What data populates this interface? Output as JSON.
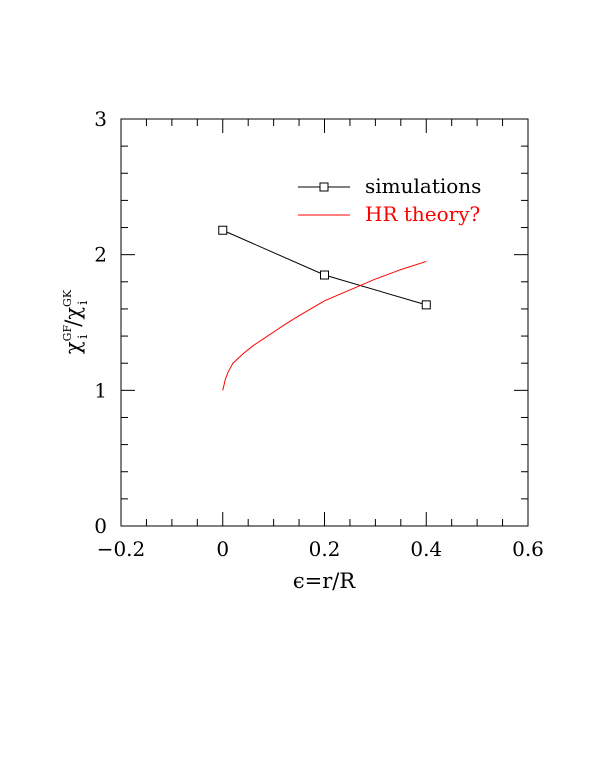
{
  "chart_data": {
    "type": "line",
    "title": "",
    "xlabel": "ϵ=r/R",
    "ylabel": "χi GF/χi GK",
    "ylabel_parts": {
      "chi": "χ",
      "sub": "i",
      "sup_num": "GF",
      "slash": "/",
      "sup_den": "GK"
    },
    "xlim": [
      -0.2,
      0.6
    ],
    "ylim": [
      0,
      3
    ],
    "x_ticks": [
      -0.2,
      0,
      0.2,
      0.4,
      0.6
    ],
    "x_tick_labels": [
      "−0.2",
      "0",
      "0.2",
      "0.4",
      "0.6"
    ],
    "y_ticks": [
      0,
      1,
      2,
      3
    ],
    "y_tick_labels": [
      "0",
      "1",
      "2",
      "3"
    ],
    "grid": false,
    "legend_position": "top-right",
    "series": [
      {
        "name": "simulations",
        "color": "#000000",
        "marker": "square",
        "x": [
          0,
          0.2,
          0.4
        ],
        "y": [
          2.18,
          1.85,
          1.63
        ]
      },
      {
        "name": "HR theory?",
        "color": "#ff0000",
        "marker": "none",
        "x": [
          0,
          0.005,
          0.01,
          0.02,
          0.04,
          0.06,
          0.08,
          0.1,
          0.12,
          0.15,
          0.2,
          0.25,
          0.3,
          0.35,
          0.4
        ],
        "y": [
          1.0,
          1.08,
          1.13,
          1.2,
          1.27,
          1.33,
          1.38,
          1.43,
          1.48,
          1.55,
          1.66,
          1.74,
          1.82,
          1.89,
          1.95
        ]
      }
    ]
  }
}
